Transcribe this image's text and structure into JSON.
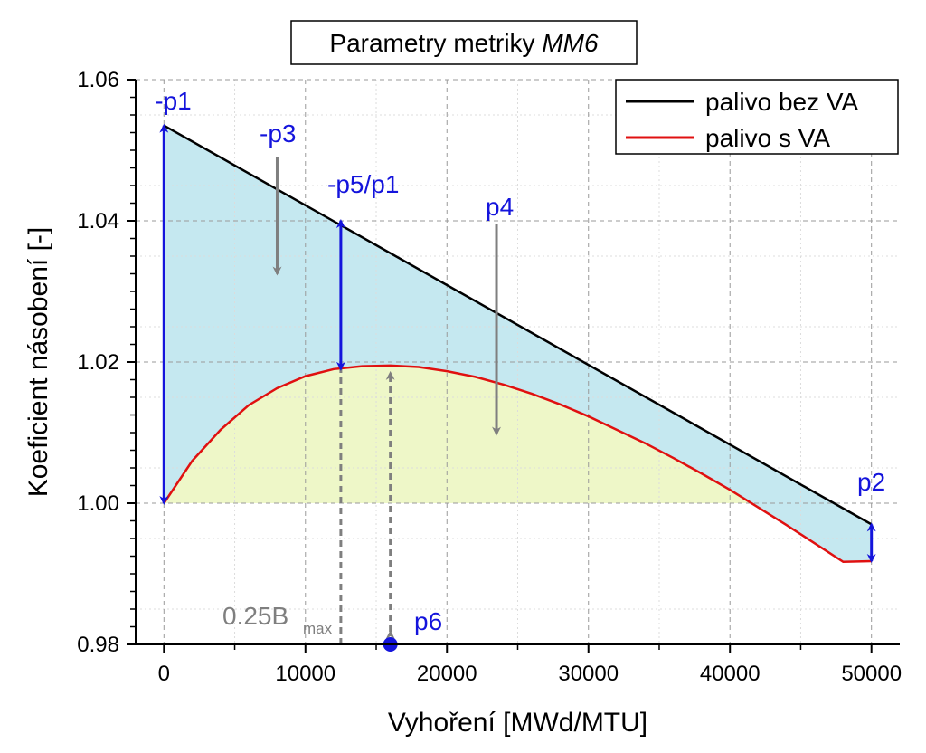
{
  "chart_data": {
    "type": "line",
    "title": "Parametry metriky ",
    "title_italic": "MM6",
    "xlabel": "Vyhoření [MWd/MTU]",
    "ylabel": "Koeficient násobení [-]",
    "xlim": [
      -2000,
      52000
    ],
    "ylim": [
      0.98,
      1.06
    ],
    "x_ticks": [
      0,
      10000,
      20000,
      30000,
      40000,
      50000
    ],
    "x_tick_labels": [
      "0",
      "10000",
      "20000",
      "30000",
      "40000",
      "50000"
    ],
    "y_ticks": [
      0.98,
      1.0,
      1.02,
      1.04,
      1.06
    ],
    "y_tick_labels": [
      "0.98",
      "1.00",
      "1.02",
      "1.04",
      "1.06"
    ],
    "grid": true,
    "legend_position": "top-right",
    "series": [
      {
        "name": "palivo bez VA",
        "color": "#000000",
        "x": [
          0,
          50000
        ],
        "y": [
          1.0535,
          0.997
        ]
      },
      {
        "name": "palivo s VA",
        "color": "#e01010",
        "x": [
          0,
          2000,
          4000,
          6000,
          8000,
          10000,
          12000,
          14000,
          16000,
          18000,
          20000,
          22000,
          24000,
          26000,
          28000,
          30000,
          32000,
          34000,
          36000,
          38000,
          40000,
          42000,
          44000,
          46000,
          48000,
          50000
        ],
        "y": [
          1.0,
          1.006,
          1.0104,
          1.0139,
          1.0163,
          1.018,
          1.019,
          1.0194,
          1.0195,
          1.0193,
          1.0187,
          1.0179,
          1.0168,
          1.0155,
          1.014,
          1.0123,
          1.0104,
          1.0085,
          1.0064,
          1.0042,
          1.0019,
          0.9994,
          0.9969,
          0.9943,
          0.9917,
          0.9918
        ]
      }
    ],
    "fill_colors": {
      "between": "#c5e8f0",
      "below_red": "#eef7c8"
    },
    "annotations": {
      "p1": {
        "label": "-p1",
        "x": 0,
        "y_from": 1.0,
        "y_to": 1.0535,
        "color": "#1414dc"
      },
      "p2": {
        "label": "p2",
        "x": 50000,
        "y_from": 0.9918,
        "y_to": 0.997,
        "color": "#1414dc"
      },
      "p3": {
        "label": "-p3",
        "x": 8000,
        "y_from": 1.049,
        "y_to": 1.0325,
        "color": "#7f7f7f"
      },
      "p4": {
        "label": "p4",
        "x": 23500,
        "y_from": 1.0395,
        "y_to": 1.0098,
        "color": "#7f7f7f"
      },
      "p5": {
        "label": "-p5/p1",
        "x": 12500,
        "y_from": 1.019,
        "y_to": 1.04,
        "color": "#1414dc"
      },
      "p6": {
        "label": "p6",
        "x": 16000,
        "y_from": 0.98,
        "y_to": 1.0195,
        "color": "#1414dc"
      },
      "b025": {
        "label": "0.25B",
        "label_sub": "max",
        "x": 12500,
        "y_from": 0.98,
        "y_to": 1.019,
        "color": "#7f7f7f"
      }
    }
  }
}
